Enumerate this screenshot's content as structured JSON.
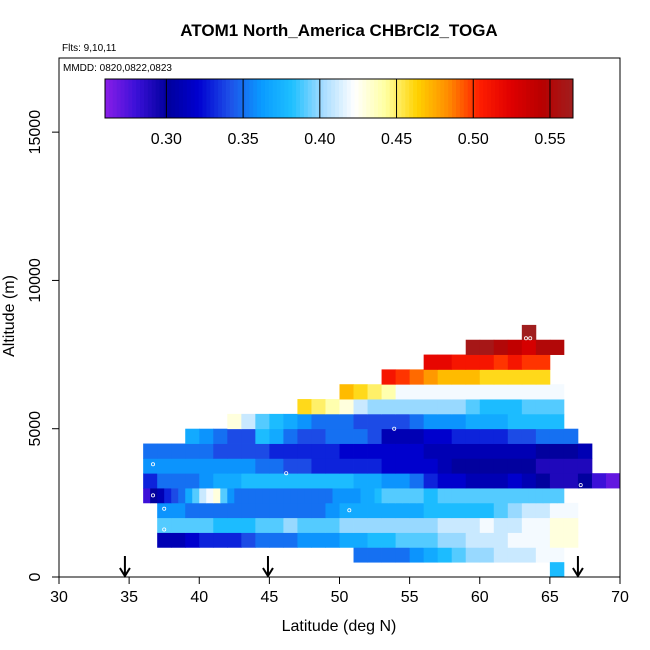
{
  "chart_data": {
    "type": "heatmap",
    "title": "ATOM1 North_America CHBrCl2_TOGA",
    "flights_label": "Flts: 9,10,11",
    "dates_label": "MMDD: 0820,0822,0823",
    "xlabel": "Latitude (deg N)",
    "ylabel": "Altitude (m)",
    "xlim": [
      30,
      70
    ],
    "ylim": [
      0,
      17500
    ],
    "x_ticks": [
      30,
      35,
      40,
      45,
      50,
      55,
      60,
      65,
      70
    ],
    "y_ticks": [
      0,
      5000,
      10000,
      15000
    ],
    "colorbar": {
      "range": [
        0.26,
        0.565
      ],
      "ticks": [
        0.3,
        0.35,
        0.4,
        0.45,
        0.5,
        0.55
      ],
      "tick_labels": [
        "0.30",
        "0.35",
        "0.40",
        "0.45",
        "0.50",
        "0.55"
      ],
      "colors": [
        "#8a1ee8",
        "#3b10d8",
        "#00009c",
        "#0000d0",
        "#1e50e8",
        "#0a9aff",
        "#1ec0ff",
        "#a8dcff",
        "#ffffff",
        "#ffffa0",
        "#ffd200",
        "#ff8c00",
        "#ff1e00",
        "#e00000",
        "#b80000",
        "#a01e1e"
      ]
    },
    "cell_size": {
      "lat": 1.0,
      "alt": 500
    },
    "rows": [
      {
        "alt": 750,
        "start": 51,
        "values": [
          0.35,
          0.35,
          0.35,
          0.35,
          0.36,
          0.37,
          0.38,
          0.39,
          0.4,
          0.4,
          0.41,
          0.41,
          0.41,
          0.42,
          0.42
        ]
      },
      {
        "alt": 250,
        "start": 65,
        "values": [
          0.38
        ]
      },
      {
        "alt": 1250,
        "start": 37,
        "values": [
          0.31,
          0.31,
          0.32,
          0.33,
          0.33,
          0.33,
          0.34,
          0.35,
          0.35,
          0.35,
          0.36,
          0.36,
          0.36,
          0.37,
          0.37,
          0.38,
          0.38,
          0.39,
          0.39,
          0.39,
          0.4,
          0.4,
          0.41,
          0.41,
          0.41,
          0.42,
          0.42,
          0.42,
          0.43,
          0.43
        ]
      },
      {
        "alt": 1750,
        "start": 37,
        "values": [
          0.39,
          0.39,
          0.39,
          0.39,
          0.38,
          0.38,
          0.38,
          0.39,
          0.39,
          0.4,
          0.39,
          0.39,
          0.39,
          0.4,
          0.4,
          0.4,
          0.4,
          0.4,
          0.4,
          0.4,
          0.41,
          0.41,
          0.41,
          0.42,
          0.41,
          0.41,
          0.42,
          0.42,
          0.43,
          0.43
        ]
      },
      {
        "alt": 2250,
        "start": 37,
        "values": [
          0.36,
          0.36,
          0.35,
          0.35,
          0.35,
          0.35,
          0.35,
          0.35,
          0.35,
          0.35,
          0.35,
          0.35,
          0.36,
          0.37,
          0.37,
          0.37,
          0.37,
          0.37,
          0.37,
          0.38,
          0.38,
          0.38,
          0.38,
          0.38,
          0.39,
          0.4,
          0.41,
          0.41,
          0.42,
          0.42
        ]
      },
      {
        "alt": 2750,
        "start": 36,
        "values": [
          0.28,
          0.3,
          0.31,
          0.33,
          0.34,
          0.35,
          0.37,
          0.39,
          0.41,
          0.42,
          0.43,
          0.39,
          0.36,
          0.35,
          0.35,
          0.35,
          0.35,
          0.35,
          0.35,
          0.35,
          0.35,
          0.35,
          0.35,
          0.35,
          0.35,
          0.35,
          0.35,
          0.36,
          0.36,
          0.36,
          0.36,
          0.37,
          0.37,
          0.38,
          0.39,
          0.39,
          0.39,
          0.39,
          0.39,
          0.39,
          0.38,
          0.38,
          0.39,
          0.39,
          0.39,
          0.39,
          0.39,
          0.39,
          0.39,
          0.39,
          0.39,
          0.39,
          0.39,
          0.39,
          0.39,
          0.39,
          0.39,
          0.39,
          0.39,
          0.39
        ]
      },
      {
        "alt": 3250,
        "start": 36,
        "values": [
          0.33,
          0.35,
          0.35,
          0.35,
          0.36,
          0.37,
          0.37,
          0.38,
          0.38,
          0.38,
          0.38,
          0.38,
          0.38,
          0.38,
          0.38,
          0.37,
          0.37,
          0.36,
          0.36,
          0.35,
          0.33,
          0.32,
          0.32,
          0.31,
          0.31,
          0.31,
          0.32,
          0.31,
          0.3,
          0.29,
          0.29,
          0.3,
          0.28,
          0.27
        ]
      },
      {
        "alt": 3750,
        "start": 36,
        "values": [
          0.36,
          0.36,
          0.36,
          0.36,
          0.36,
          0.36,
          0.36,
          0.36,
          0.35,
          0.35,
          0.34,
          0.34,
          0.33,
          0.33,
          0.33,
          0.33,
          0.33,
          0.32,
          0.32,
          0.32,
          0.32,
          0.31,
          0.3,
          0.3,
          0.3,
          0.3,
          0.3,
          0.3,
          0.29,
          0.29,
          0.29,
          0.29
        ]
      },
      {
        "alt": 4250,
        "start": 36,
        "values": [
          0.35,
          0.35,
          0.35,
          0.35,
          0.35,
          0.34,
          0.34,
          0.34,
          0.34,
          0.33,
          0.33,
          0.33,
          0.33,
          0.33,
          0.32,
          0.32,
          0.32,
          0.32,
          0.32,
          0.32,
          0.31,
          0.31,
          0.31,
          0.31,
          0.31,
          0.31,
          0.31,
          0.31,
          0.3,
          0.3,
          0.3,
          0.31
        ]
      },
      {
        "alt": 4750,
        "start": 39,
        "values": [
          0.37,
          0.36,
          0.35,
          0.34,
          0.34,
          0.38,
          0.37,
          0.35,
          0.34,
          0.34,
          0.35,
          0.35,
          0.35,
          0.34,
          0.31,
          0.31,
          0.31,
          0.32,
          0.32,
          0.33,
          0.33,
          0.33,
          0.33,
          0.34,
          0.34,
          0.35,
          0.35,
          0.35
        ]
      },
      {
        "alt": 5250,
        "start": 42,
        "values": [
          0.43,
          0.41,
          0.39,
          0.38,
          0.37,
          0.36,
          0.35,
          0.35,
          0.35,
          0.34,
          0.34,
          0.34,
          0.34,
          0.35,
          0.36,
          0.36,
          0.36,
          0.37,
          0.37,
          0.37,
          0.38,
          0.38,
          0.38,
          0.38
        ]
      },
      {
        "alt": 5750,
        "start": 47,
        "values": [
          0.46,
          0.45,
          0.44,
          0.43,
          0.41,
          0.4,
          0.4,
          0.4,
          0.4,
          0.4,
          0.4,
          0.4,
          0.39,
          0.38,
          0.38,
          0.38,
          0.39,
          0.39,
          0.39
        ]
      },
      {
        "alt": 6250,
        "start": 50,
        "values": [
          0.47,
          0.46,
          0.45,
          0.44,
          0.42,
          0.42,
          0.42,
          0.42,
          0.42,
          0.42,
          0.42,
          0.42,
          0.42,
          0.42,
          0.42,
          0.42
        ]
      },
      {
        "alt": 6750,
        "start": 53,
        "values": [
          0.51,
          0.5,
          0.49,
          0.48,
          0.47,
          0.47,
          0.47,
          0.46,
          0.46,
          0.46,
          0.46,
          0.46
        ]
      },
      {
        "alt": 7250,
        "start": 56,
        "values": [
          0.52,
          0.52,
          0.51,
          0.51,
          0.51,
          0.5,
          0.51,
          0.5,
          0.5
        ]
      },
      {
        "alt": 7750,
        "start": 59,
        "values": [
          0.56,
          0.56,
          0.55,
          0.54,
          0.53,
          0.55,
          0.55
        ]
      },
      {
        "alt": 8250,
        "start": 63,
        "values": [
          0.565
        ]
      }
    ],
    "sample_markers": [
      {
        "lat": 36.7,
        "alt": 3800
      },
      {
        "lat": 36.7,
        "alt": 2750
      },
      {
        "lat": 37.5,
        "alt": 2300
      },
      {
        "lat": 37.5,
        "alt": 1600
      },
      {
        "lat": 46.2,
        "alt": 3500
      },
      {
        "lat": 50.7,
        "alt": 2250
      },
      {
        "lat": 53.9,
        "alt": 5000
      },
      {
        "lat": 63.3,
        "alt": 8050
      },
      {
        "lat": 63.6,
        "alt": 8050
      },
      {
        "lat": 67.2,
        "alt": 3100
      }
    ],
    "arrow_latitudes": [
      34.7,
      44.9,
      67.0
    ]
  }
}
